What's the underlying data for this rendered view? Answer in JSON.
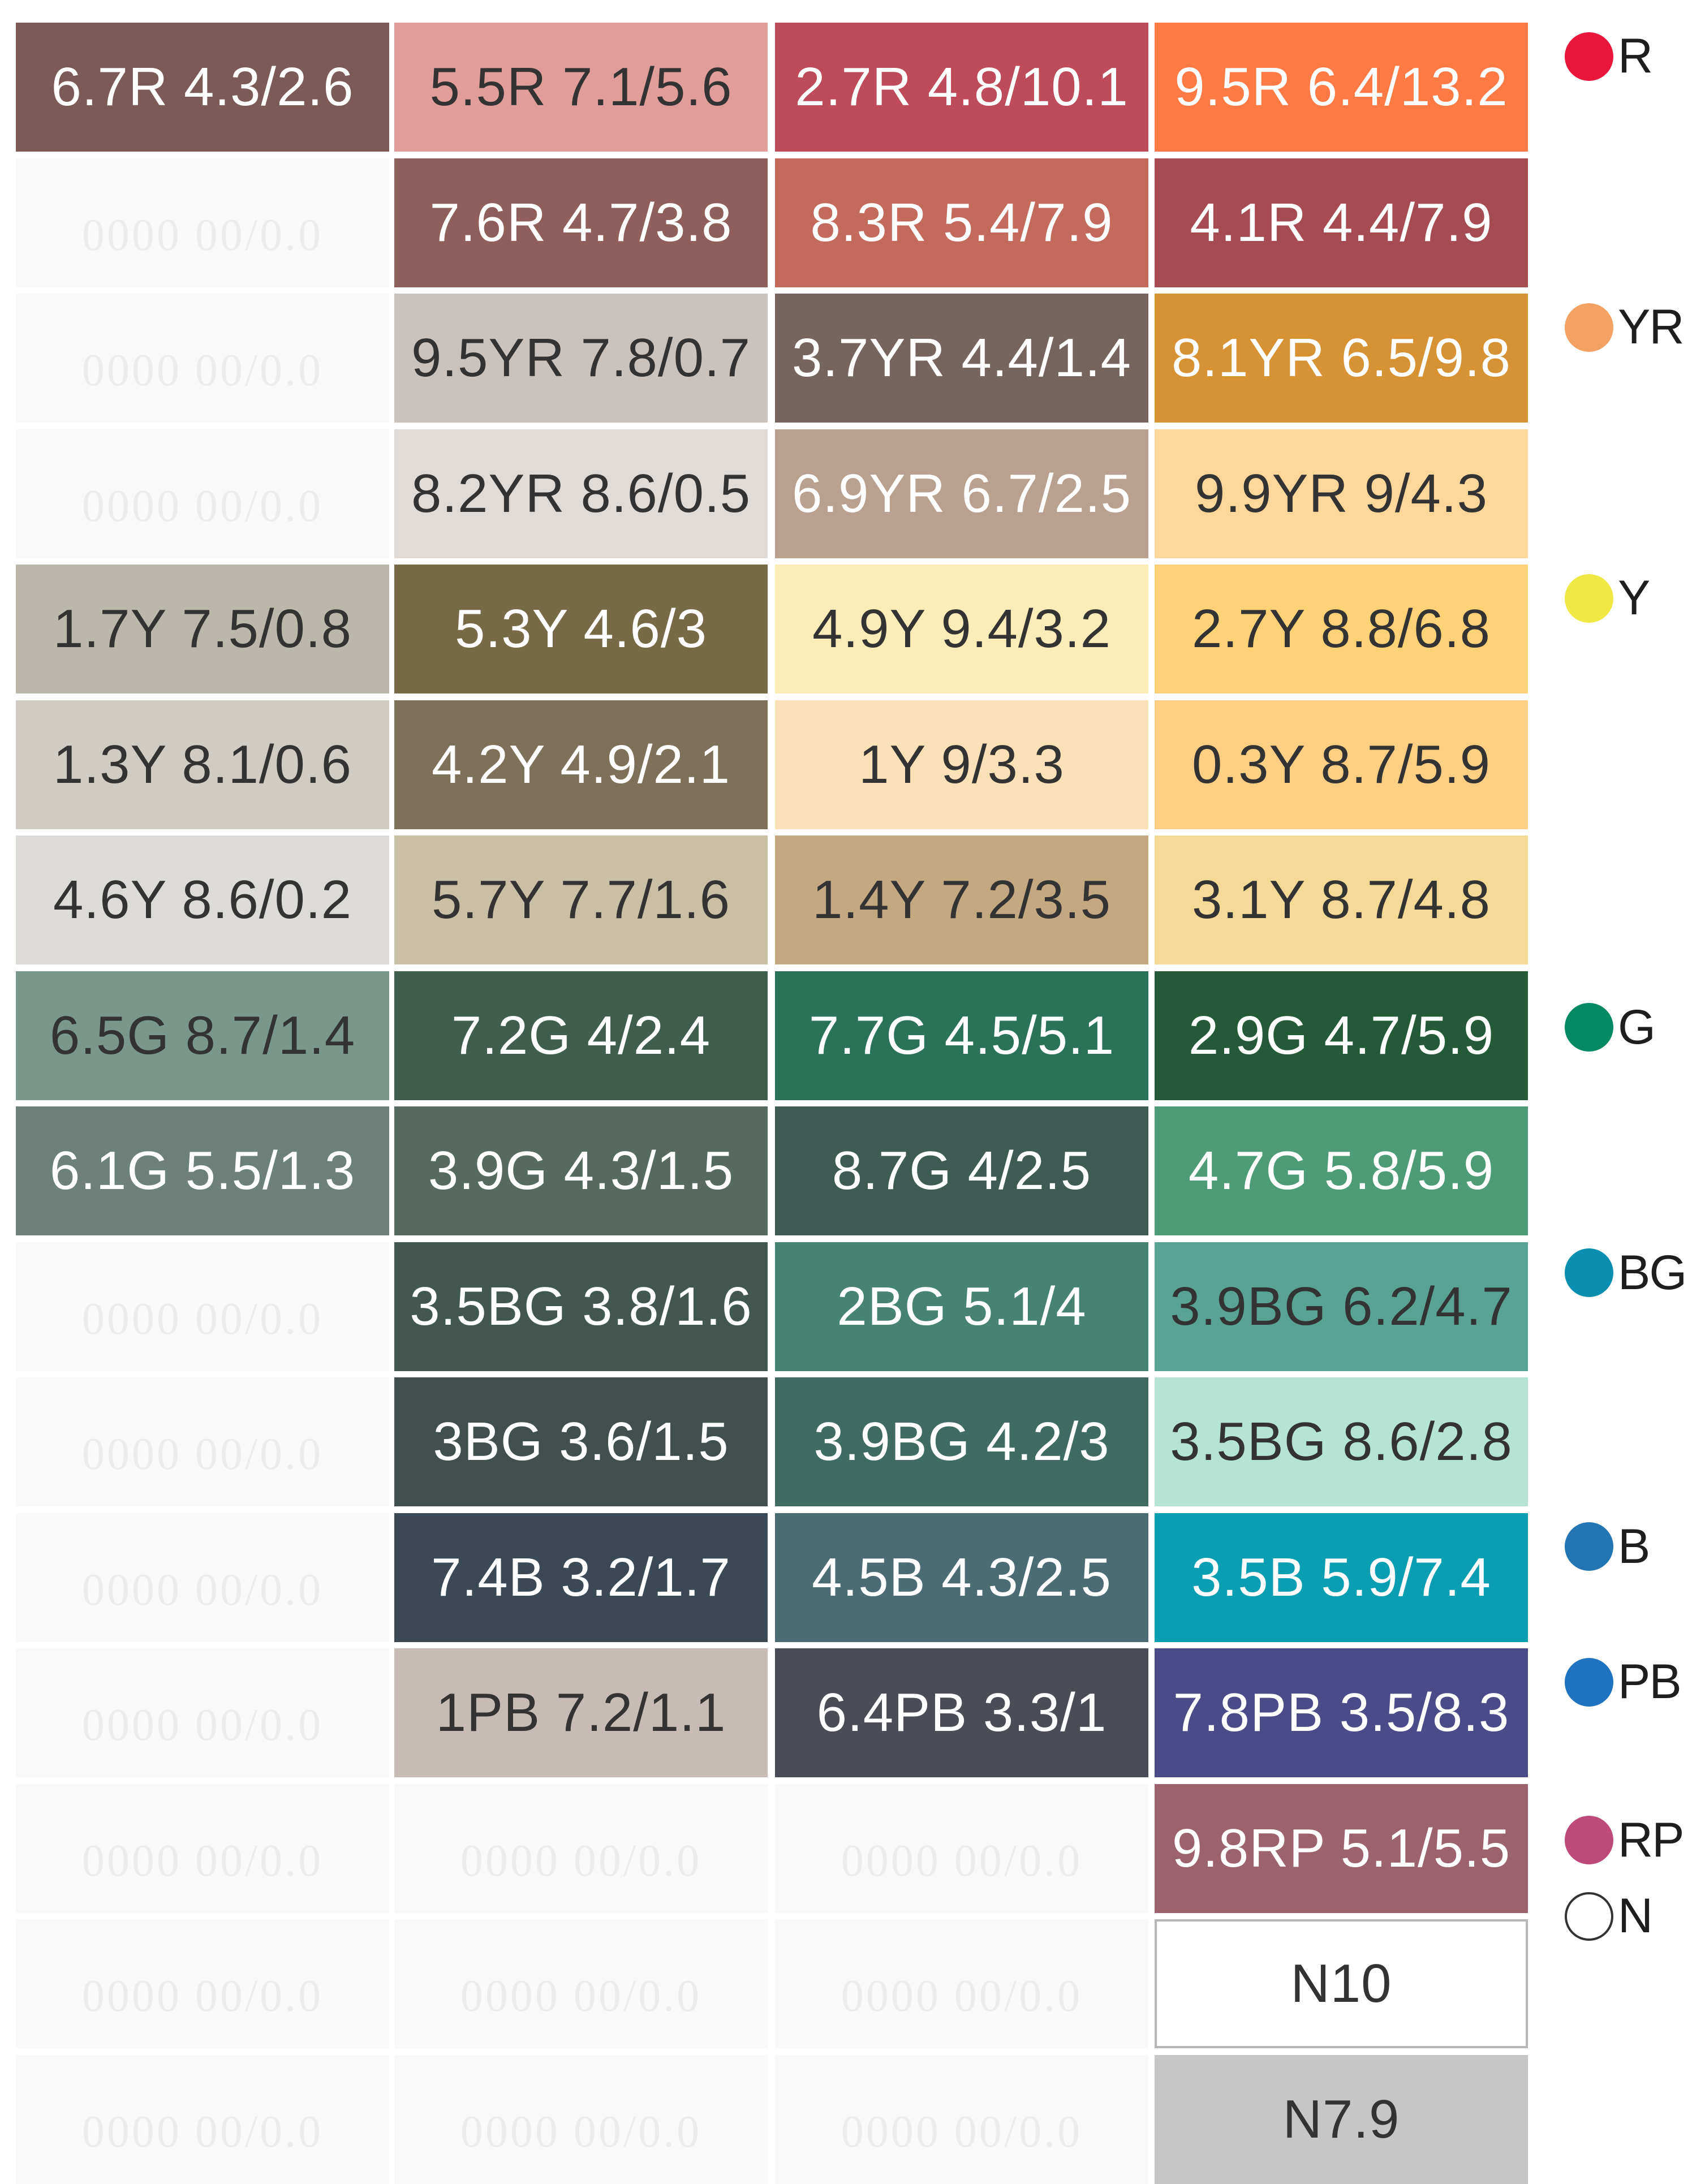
{
  "swatches": [
    [
      {
        "label": "6.7R 4.3/2.6",
        "bg": "#7b5a58",
        "fg": "#ffffff"
      },
      {
        "label": "5.5R 7.1/5.6",
        "bg": "#e09d9a",
        "fg": "#333333"
      },
      {
        "label": "2.7R 4.8/10.1",
        "bg": "#bd4b5a",
        "fg": "#ffffff"
      },
      {
        "label": "9.5R 6.4/13.2",
        "bg": "#ff7a45",
        "fg": "#ffffff"
      }
    ],
    [
      {
        "label": "0000 00/0.0",
        "empty": true
      },
      {
        "label": "7.6R 4.7/3.8",
        "bg": "#8f5f5b",
        "fg": "#ffffff"
      },
      {
        "label": "8.3R 5.4/7.9",
        "bg": "#c36a5d",
        "fg": "#ffffff"
      },
      {
        "label": "4.1R 4.4/7.9",
        "bg": "#a54b51",
        "fg": "#ffffff"
      }
    ],
    [
      {
        "label": "0000 00/0.0",
        "empty": true
      },
      {
        "label": "9.5YR 7.8/0.7",
        "bg": "#cac3bd",
        "fg": "#333333"
      },
      {
        "label": "3.7YR 4.4/1.4",
        "bg": "#75655e",
        "fg": "#ffffff"
      },
      {
        "label": "8.1YR 6.5/9.8",
        "bg": "#d79233",
        "fg": "#ffffff"
      }
    ],
    [
      {
        "label": "0000 00/0.0",
        "empty": true
      },
      {
        "label": "8.2YR 8.6/0.5",
        "bg": "#e0dbd6",
        "fg": "#333333"
      },
      {
        "label": "6.9YR 6.7/2.5",
        "bg": "#b9a08f",
        "fg": "#ffffff"
      },
      {
        "label": "9.9YR 9/4.3",
        "bg": "#ffd79b",
        "fg": "#333333"
      }
    ],
    [
      {
        "label": "1.7Y 7.5/0.8",
        "bg": "#bbb7ab",
        "fg": "#333333"
      },
      {
        "label": "5.3Y 4.6/3",
        "bg": "#776b47",
        "fg": "#ffffff"
      },
      {
        "label": "4.9Y 9.4/3.2",
        "bg": "#fcecb8",
        "fg": "#333333"
      },
      {
        "label": "2.7Y 8.8/6.8",
        "bg": "#ffd278",
        "fg": "#333333"
      }
    ],
    [
      {
        "label": "1.3Y 8.1/0.6",
        "bg": "#d0cbc3",
        "fg": "#333333"
      },
      {
        "label": "4.2Y 4.9/2.1",
        "bg": "#7d7159",
        "fg": "#ffffff"
      },
      {
        "label": "1Y 9/3.3",
        "bg": "#fbe1b7",
        "fg": "#333333"
      },
      {
        "label": "0.3Y 8.7/5.9",
        "bg": "#ffd083",
        "fg": "#333333"
      }
    ],
    [
      {
        "label": "4.6Y 8.6/0.2",
        "bg": "#dcdbd7",
        "fg": "#333333"
      },
      {
        "label": "5.7Y 7.7/1.6",
        "bg": "#c8bfa5",
        "fg": "#333333"
      },
      {
        "label": "1.4Y 7.2/3.5",
        "bg": "#c4a882",
        "fg": "#333333"
      },
      {
        "label": "3.1Y 8.7/4.8",
        "bg": "#f4da96",
        "fg": "#333333"
      }
    ],
    [
      {
        "label": "6.5G 8.7/1.4",
        "bg": "#7a978b",
        "fg": "#333333"
      },
      {
        "label": "7.2G 4/2.4",
        "bg": "#3f5e4e",
        "fg": "#ffffff"
      },
      {
        "label": "7.7G 4.5/5.1",
        "bg": "#2b7358",
        "fg": "#ffffff"
      },
      {
        "label": "2.9G 4.7/5.9",
        "bg": "#245a37",
        "fg": "#ffffff"
      }
    ],
    [
      {
        "label": "6.1G 5.5/1.3",
        "bg": "#6d817a",
        "fg": "#ffffff"
      },
      {
        "label": "3.9G 4.3/1.5",
        "bg": "#566a5f",
        "fg": "#ffffff"
      },
      {
        "label": "8.7G 4/2.5",
        "bg": "#3f5c54",
        "fg": "#ffffff"
      },
      {
        "label": "4.7G 5.8/5.9",
        "bg": "#4e9c77",
        "fg": "#ffffff"
      }
    ],
    [
      {
        "label": "0000 00/0.0",
        "empty": true
      },
      {
        "label": "3.5BG 3.8/1.6",
        "bg": "#435751",
        "fg": "#ffffff"
      },
      {
        "label": "2BG 5.1/4",
        "bg": "#468373",
        "fg": "#ffffff"
      },
      {
        "label": "3.9BG 6.2/4.7",
        "bg": "#58a394",
        "fg": "#333333"
      }
    ],
    [
      {
        "label": "0000 00/0.0",
        "empty": true
      },
      {
        "label": "3BG 3.6/1.5",
        "bg": "#424f4f",
        "fg": "#ffffff"
      },
      {
        "label": "3.9BG 4.2/3",
        "bg": "#3f6b62",
        "fg": "#ffffff"
      },
      {
        "label": "3.5BG 8.6/2.8",
        "bg": "#b5e4d5",
        "fg": "#333333"
      }
    ],
    [
      {
        "label": "0000 00/0.0",
        "empty": true
      },
      {
        "label": "7.4B 3.2/1.7",
        "bg": "#3a4953",
        "fg": "#ffffff"
      },
      {
        "label": "4.5B 4.3/2.5",
        "bg": "#4c6c73",
        "fg": "#ffffff"
      },
      {
        "label": "3.5B 5.9/7.4",
        "bg": "#0a9eb3",
        "fg": "#ffffff"
      }
    ],
    [
      {
        "label": "0000 00/0.0",
        "empty": true
      },
      {
        "label": "1PB 7.2/1.1",
        "bg": "#c7bcb5",
        "fg": "#333333"
      },
      {
        "label": "6.4PB 3.3/1",
        "bg": "#4a4d56",
        "fg": "#ffffff"
      },
      {
        "label": "7.8PB 3.5/8.3",
        "bg": "#4c4b8a",
        "fg": "#ffffff"
      }
    ],
    [
      {
        "label": "0000 00/0.0",
        "empty": true
      },
      {
        "label": "0000 00/0.0",
        "empty": true
      },
      {
        "label": "0000 00/0.0",
        "empty": true
      },
      {
        "label": "9.8RP 5.1/5.5",
        "bg": "#9c636e",
        "fg": "#ffffff"
      }
    ],
    [
      {
        "label": "0000 00/0.0",
        "empty": true
      },
      {
        "label": "0000 00/0.0",
        "empty": true
      },
      {
        "label": "0000 00/0.0",
        "empty": true
      },
      {
        "label": "N10",
        "bg": "#ffffff",
        "fg": "#333333",
        "border": true
      }
    ],
    [
      {
        "label": "0000 00/0.0",
        "empty": true
      },
      {
        "label": "0000 00/0.0",
        "empty": true
      },
      {
        "label": "0000 00/0.0",
        "empty": true
      },
      {
        "label": "N7.9",
        "bg": "#c6c6c6",
        "fg": "#333333"
      }
    ]
  ],
  "legend": [
    {
      "label": "R",
      "color": "#e8173b",
      "row": 0
    },
    {
      "label": "YR",
      "color": "#f4a263",
      "row": 2
    },
    {
      "label": "Y",
      "color": "#f0e845",
      "row": 4
    },
    {
      "label": "G",
      "color": "#058a63",
      "row": 7
    },
    {
      "label": "BG",
      "color": "#0a8fb0",
      "row": 9
    },
    {
      "label": "B",
      "color": "#2376b3",
      "row": 11
    },
    {
      "label": "PB",
      "color": "#2073c0",
      "row": 12
    },
    {
      "label": "RP",
      "color": "#be4a7a",
      "row": 13
    },
    {
      "label": "N",
      "color": "#ffffff",
      "row": 14,
      "outline": true
    }
  ]
}
